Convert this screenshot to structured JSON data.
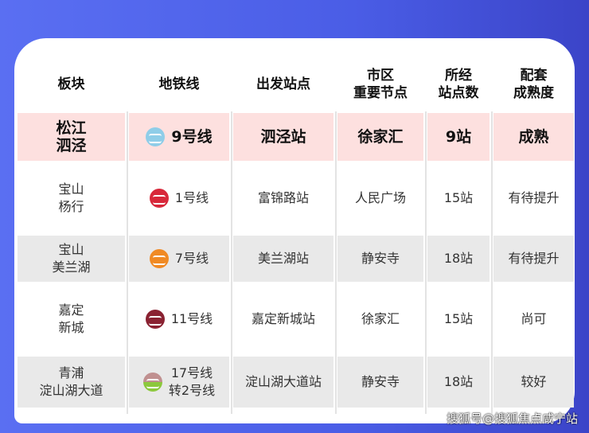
{
  "headers": [
    "板块",
    "地铁线",
    "出发站点",
    "市区\n重要节点",
    "所经\n站点数",
    "配套\n成熟度"
  ],
  "highlight": {
    "area": "松江\n泗泾",
    "line": "9号线",
    "line_color": "#8fcde8",
    "start": "泗泾站",
    "hub": "徐家汇",
    "stops": "9站",
    "maturity": "成熟"
  },
  "rows": [
    {
      "area": "宝山\n杨行",
      "line": "1号线",
      "line_color": "#d8283a",
      "start": "富锦路站",
      "hub": "人民广场",
      "stops": "15站",
      "maturity": "有待提升"
    },
    {
      "area": "宝山\n美兰湖",
      "line": "7号线",
      "line_color": "#f08a24",
      "start": "美兰湖站",
      "hub": "静安寺",
      "stops": "18站",
      "maturity": "有待提升"
    },
    {
      "area": "嘉定\n新城",
      "line": "11号线",
      "line_color": "#8a2232",
      "start": "嘉定新城站",
      "hub": "徐家汇",
      "stops": "15站",
      "maturity": "尚可"
    },
    {
      "area": "青浦\n淀山湖大道",
      "line": "17号线\n转2号线",
      "line_color": "#c09090",
      "line_color2": "#8cc83c",
      "start": "淀山湖大道站",
      "hub": "静安寺",
      "stops": "18站",
      "maturity": "较好"
    }
  ],
  "watermark": "搜狐号@搜狐焦点咸宁站"
}
